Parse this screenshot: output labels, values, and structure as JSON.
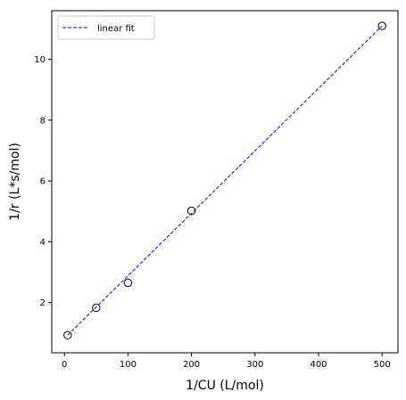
{
  "chart_data": {
    "type": "scatter",
    "title": "",
    "xlabel": "1/CU (L/mol)",
    "ylabel": "1/r (L*s/mol)",
    "xlim": [
      -20,
      525
    ],
    "ylim": [
      0.35,
      11.6
    ],
    "xticks": [
      0,
      100,
      200,
      300,
      400,
      500
    ],
    "yticks": [
      2,
      4,
      6,
      8,
      10
    ],
    "grid": false,
    "legend_position": "top-left",
    "series": [
      {
        "type": "scatter",
        "marker": "open-circle",
        "color": "#000000",
        "x": [
          5,
          50,
          100,
          200,
          500
        ],
        "y": [
          0.93,
          1.83,
          2.65,
          5.02,
          11.1
        ]
      },
      {
        "name": "linear fit",
        "type": "line",
        "style": "dashed",
        "color": "#0000ff",
        "x": [
          5,
          500
        ],
        "y": [
          0.93,
          11.1
        ]
      }
    ]
  }
}
